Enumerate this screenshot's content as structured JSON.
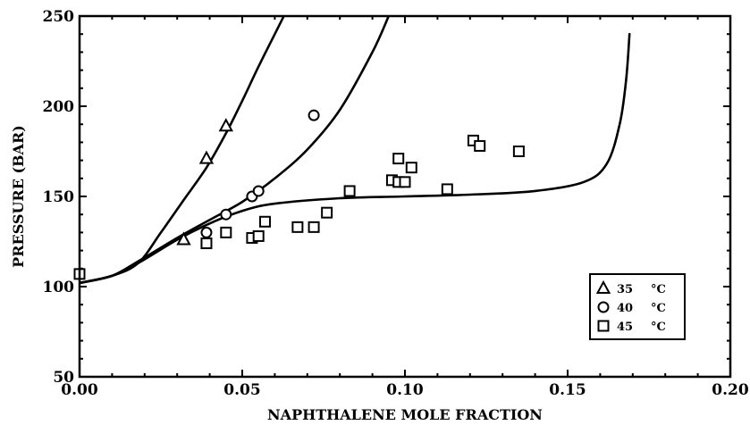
{
  "chart_data": {
    "type": "scatter",
    "xlabel": "NAPHTHALENE MOLE FRACTION",
    "ylabel": "PRESSURE (BAR)",
    "xlim": [
      0.0,
      0.2
    ],
    "ylim": [
      50,
      250
    ],
    "x_ticks": [
      0.0,
      0.05,
      0.1,
      0.15,
      0.2
    ],
    "x_tick_labels": [
      "0.00",
      "0.05",
      "0.10",
      "0.15",
      "0.20"
    ],
    "y_ticks": [
      50,
      100,
      150,
      200,
      250
    ],
    "y_tick_labels": [
      "50",
      "100",
      "150",
      "200",
      "250"
    ],
    "legend_position": "bottom-right",
    "series": [
      {
        "name": "35 °C",
        "legend_unit": "°C",
        "legend_value": "35",
        "marker": "triangle",
        "points": [
          [
            0.032,
            126
          ],
          [
            0.039,
            171
          ],
          [
            0.045,
            189
          ]
        ],
        "curve": [
          [
            0.0,
            102
          ],
          [
            0.01,
            106
          ],
          [
            0.018,
            113
          ],
          [
            0.025,
            130
          ],
          [
            0.032,
            148
          ],
          [
            0.039,
            166
          ],
          [
            0.045,
            185
          ],
          [
            0.05,
            203
          ],
          [
            0.055,
            222
          ],
          [
            0.06,
            240
          ],
          [
            0.065,
            258
          ]
        ]
      },
      {
        "name": "40 °C",
        "legend_unit": "°C",
        "legend_value": "40",
        "marker": "circle",
        "points": [
          [
            0.039,
            130
          ],
          [
            0.045,
            140
          ],
          [
            0.053,
            150
          ],
          [
            0.055,
            153
          ],
          [
            0.072,
            195
          ]
        ],
        "curve": [
          [
            0.0,
            102
          ],
          [
            0.01,
            106
          ],
          [
            0.018,
            114
          ],
          [
            0.03,
            127
          ],
          [
            0.04,
            137
          ],
          [
            0.05,
            147
          ],
          [
            0.06,
            160
          ],
          [
            0.07,
            176
          ],
          [
            0.08,
            198
          ],
          [
            0.09,
            230
          ],
          [
            0.095,
            250
          ]
        ]
      },
      {
        "name": "45 °C",
        "legend_unit": "°C",
        "legend_value": "45",
        "marker": "square",
        "points": [
          [
            0.0,
            107
          ],
          [
            0.039,
            124
          ],
          [
            0.045,
            130
          ],
          [
            0.053,
            127
          ],
          [
            0.055,
            128
          ],
          [
            0.057,
            136
          ],
          [
            0.067,
            133
          ],
          [
            0.072,
            133
          ],
          [
            0.076,
            141
          ],
          [
            0.083,
            153
          ],
          [
            0.096,
            159
          ],
          [
            0.098,
            158
          ],
          [
            0.098,
            171
          ],
          [
            0.1,
            158
          ],
          [
            0.102,
            166
          ],
          [
            0.113,
            154
          ],
          [
            0.121,
            181
          ],
          [
            0.123,
            178
          ],
          [
            0.135,
            175
          ]
        ],
        "curve": [
          [
            0.0,
            102
          ],
          [
            0.01,
            106
          ],
          [
            0.018,
            113
          ],
          [
            0.03,
            126
          ],
          [
            0.04,
            135
          ],
          [
            0.05,
            142
          ],
          [
            0.06,
            146
          ],
          [
            0.08,
            149
          ],
          [
            0.1,
            150
          ],
          [
            0.12,
            151
          ],
          [
            0.14,
            153
          ],
          [
            0.155,
            158
          ],
          [
            0.162,
            168
          ],
          [
            0.166,
            190
          ],
          [
            0.168,
            215
          ],
          [
            0.169,
            240
          ]
        ]
      }
    ]
  }
}
